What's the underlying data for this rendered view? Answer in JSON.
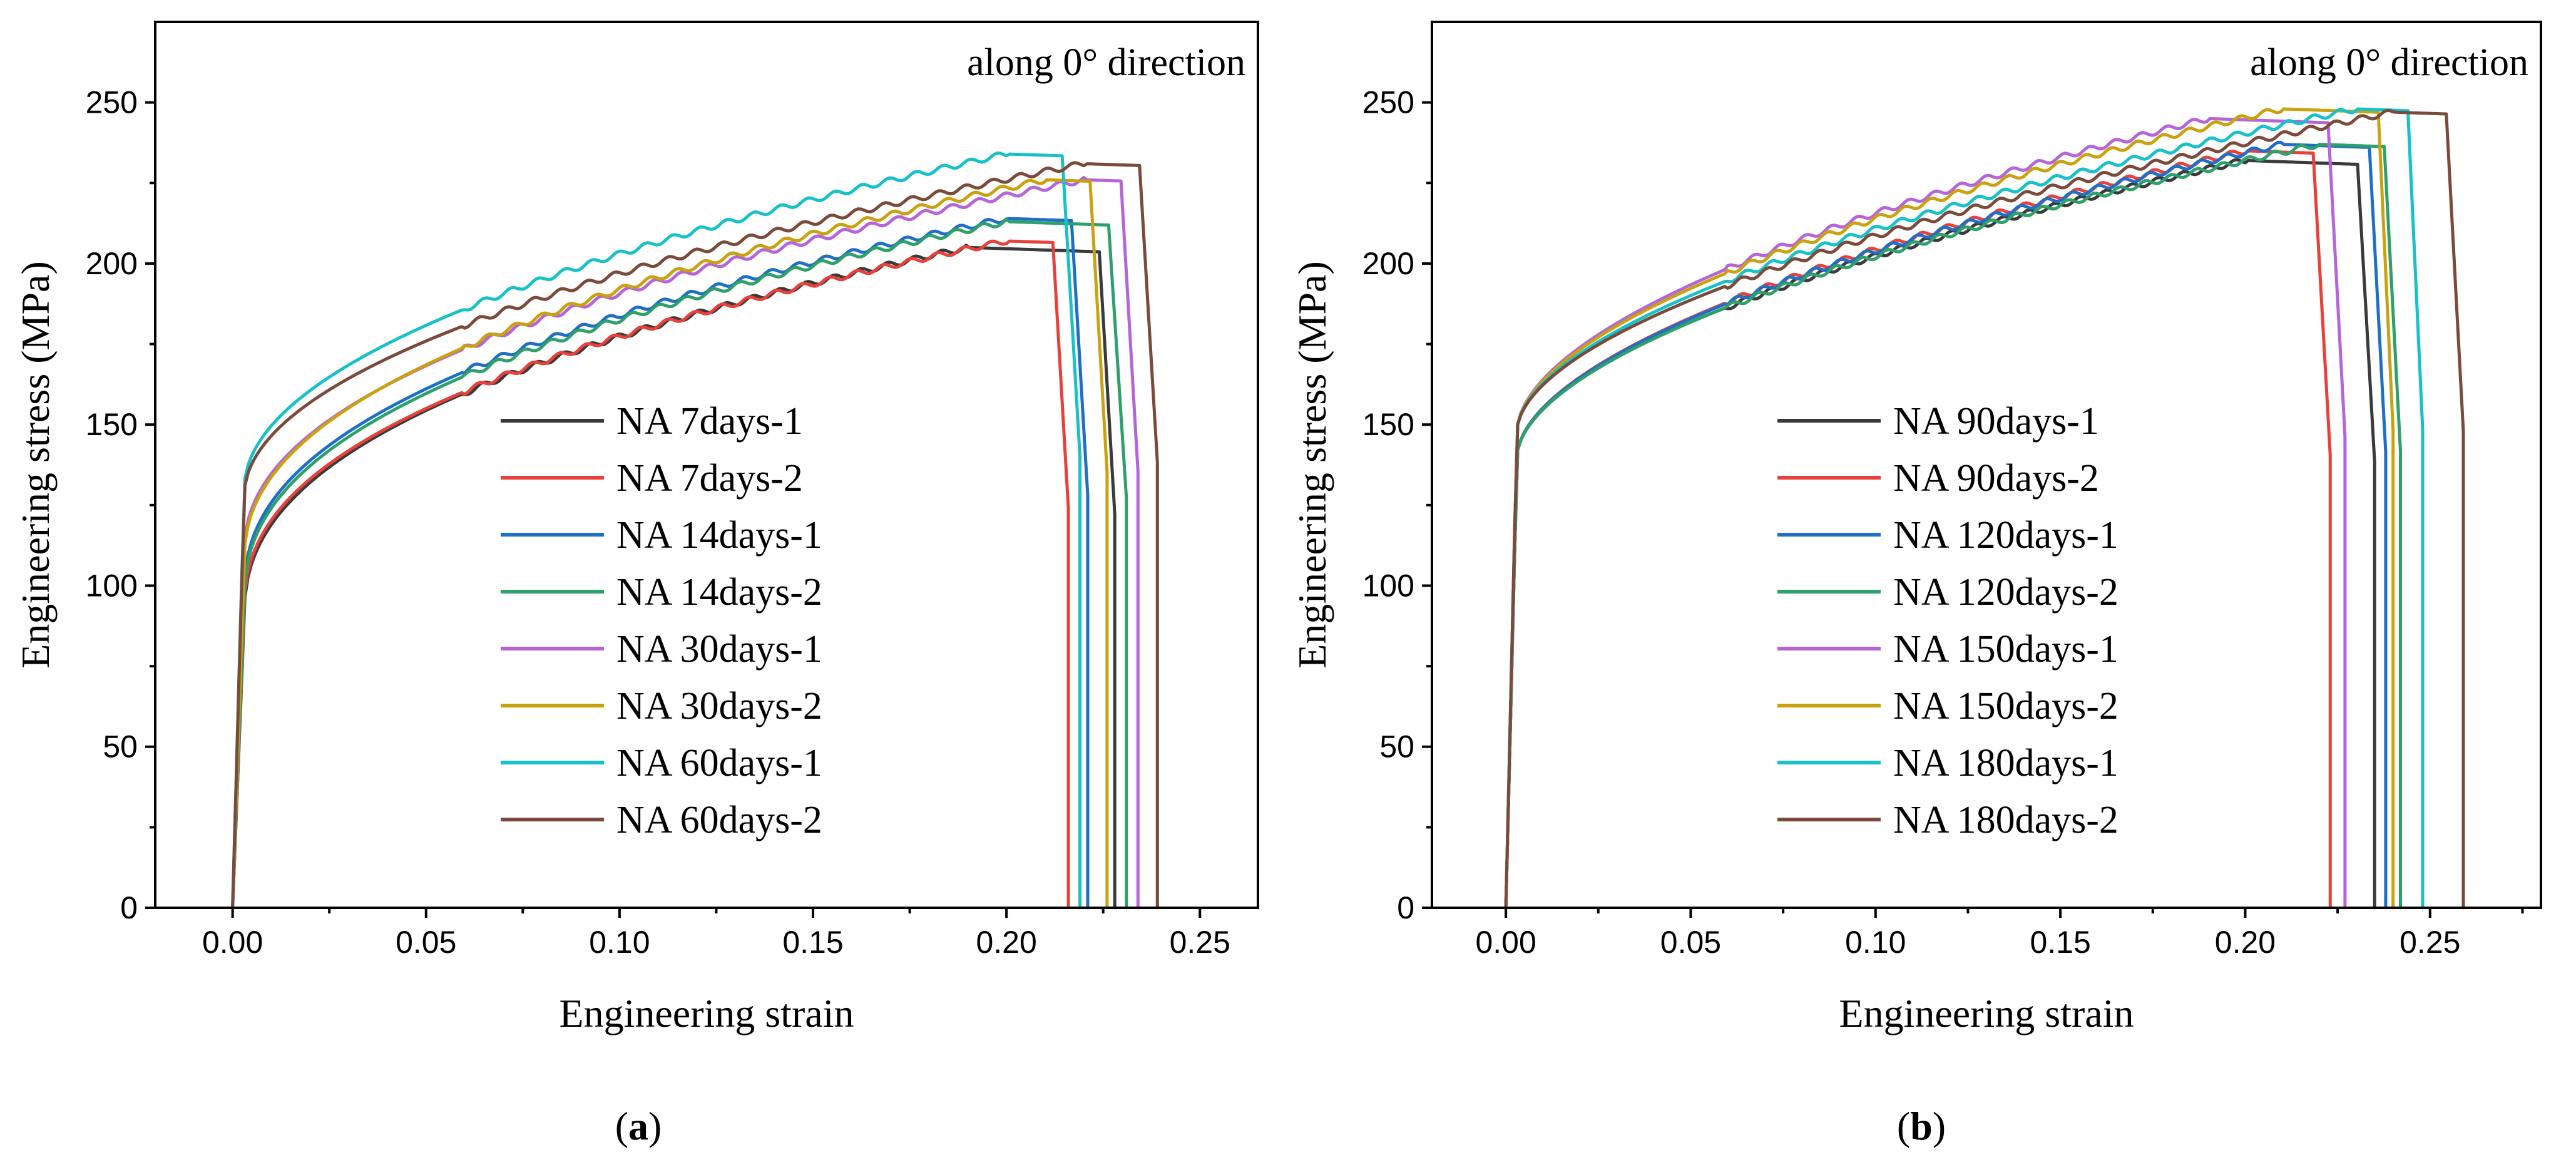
{
  "chart_data": [
    {
      "type": "line",
      "panel_label": "a",
      "annotation": "along 0° direction",
      "xlabel": "Engineering strain",
      "ylabel": "Engineering stress (MPa)",
      "xlim": [
        -0.02,
        0.265
      ],
      "ylim": [
        0,
        275
      ],
      "xticks": [
        "0.00",
        "0.05",
        "0.10",
        "0.15",
        "0.20",
        "0.25"
      ],
      "yticks": [
        "0",
        "50",
        "100",
        "150",
        "200",
        "250"
      ],
      "grid": false,
      "legend_position": "center",
      "series": [
        {
          "name": "NA 7days-1",
          "color": "#3a3a3a",
          "y0": 90,
          "uts": 205,
          "e_uts": 0.19,
          "e_f": 0.228,
          "n": 0.42
        },
        {
          "name": "NA 7days-2",
          "color": "#e8413c",
          "y0": 92,
          "uts": 207,
          "e_uts": 0.2,
          "e_f": 0.216,
          "n": 0.42
        },
        {
          "name": "NA 14days-1",
          "color": "#1f6fc6",
          "y0": 97,
          "uts": 214,
          "e_uts": 0.2,
          "e_f": 0.221,
          "n": 0.42
        },
        {
          "name": "NA 14days-2",
          "color": "#2ea06a",
          "y0": 95,
          "uts": 213,
          "e_uts": 0.2,
          "e_f": 0.231,
          "n": 0.42
        },
        {
          "name": "NA 30days-1",
          "color": "#b565d8",
          "y0": 110,
          "uts": 226,
          "e_uts": 0.22,
          "e_f": 0.234,
          "n": 0.45
        },
        {
          "name": "NA 30days-2",
          "color": "#c9a20e",
          "y0": 108,
          "uts": 226,
          "e_uts": 0.21,
          "e_f": 0.226,
          "n": 0.45
        },
        {
          "name": "NA 60days-1",
          "color": "#17c1c9",
          "y0": 130,
          "uts": 234,
          "e_uts": 0.2,
          "e_f": 0.219,
          "n": 0.5
        },
        {
          "name": "NA 60days-2",
          "color": "#7a4a3a",
          "y0": 128,
          "uts": 231,
          "e_uts": 0.22,
          "e_f": 0.239,
          "n": 0.5
        }
      ]
    },
    {
      "type": "line",
      "panel_label": "b",
      "annotation": "along 0° direction",
      "xlabel": "Engineering strain",
      "ylabel": "Engineering stress (MPa)",
      "xlim": [
        -0.02,
        0.28
      ],
      "ylim": [
        0,
        275
      ],
      "xticks": [
        "0.00",
        "0.05",
        "0.10",
        "0.15",
        "0.20",
        "0.25"
      ],
      "yticks": [
        "0",
        "50",
        "100",
        "150",
        "200",
        "250"
      ],
      "grid": false,
      "legend_position": "center",
      "series": [
        {
          "name": "NA 90days-1",
          "color": "#3a3a3a",
          "y0": 140,
          "uts": 232,
          "e_uts": 0.2,
          "e_f": 0.235,
          "n": 0.55
        },
        {
          "name": "NA 90days-2",
          "color": "#e8413c",
          "y0": 140,
          "uts": 235,
          "e_uts": 0.2,
          "e_f": 0.223,
          "n": 0.55
        },
        {
          "name": "NA 120days-1",
          "color": "#1f6fc6",
          "y0": 140,
          "uts": 237,
          "e_uts": 0.21,
          "e_f": 0.238,
          "n": 0.55
        },
        {
          "name": "NA 120days-2",
          "color": "#2ea06a",
          "y0": 140,
          "uts": 237,
          "e_uts": 0.22,
          "e_f": 0.242,
          "n": 0.55
        },
        {
          "name": "NA 150days-1",
          "color": "#b565d8",
          "y0": 148,
          "uts": 245,
          "e_uts": 0.19,
          "e_f": 0.227,
          "n": 0.55
        },
        {
          "name": "NA 150days-2",
          "color": "#c9a20e",
          "y0": 148,
          "uts": 248,
          "e_uts": 0.21,
          "e_f": 0.24,
          "n": 0.55
        },
        {
          "name": "NA 180days-1",
          "color": "#17c1c9",
          "y0": 148,
          "uts": 248,
          "e_uts": 0.23,
          "e_f": 0.248,
          "n": 0.55
        },
        {
          "name": "NA 180days-2",
          "color": "#7a4a3a",
          "y0": 148,
          "uts": 247,
          "e_uts": 0.24,
          "e_f": 0.259,
          "n": 0.55
        }
      ]
    }
  ]
}
